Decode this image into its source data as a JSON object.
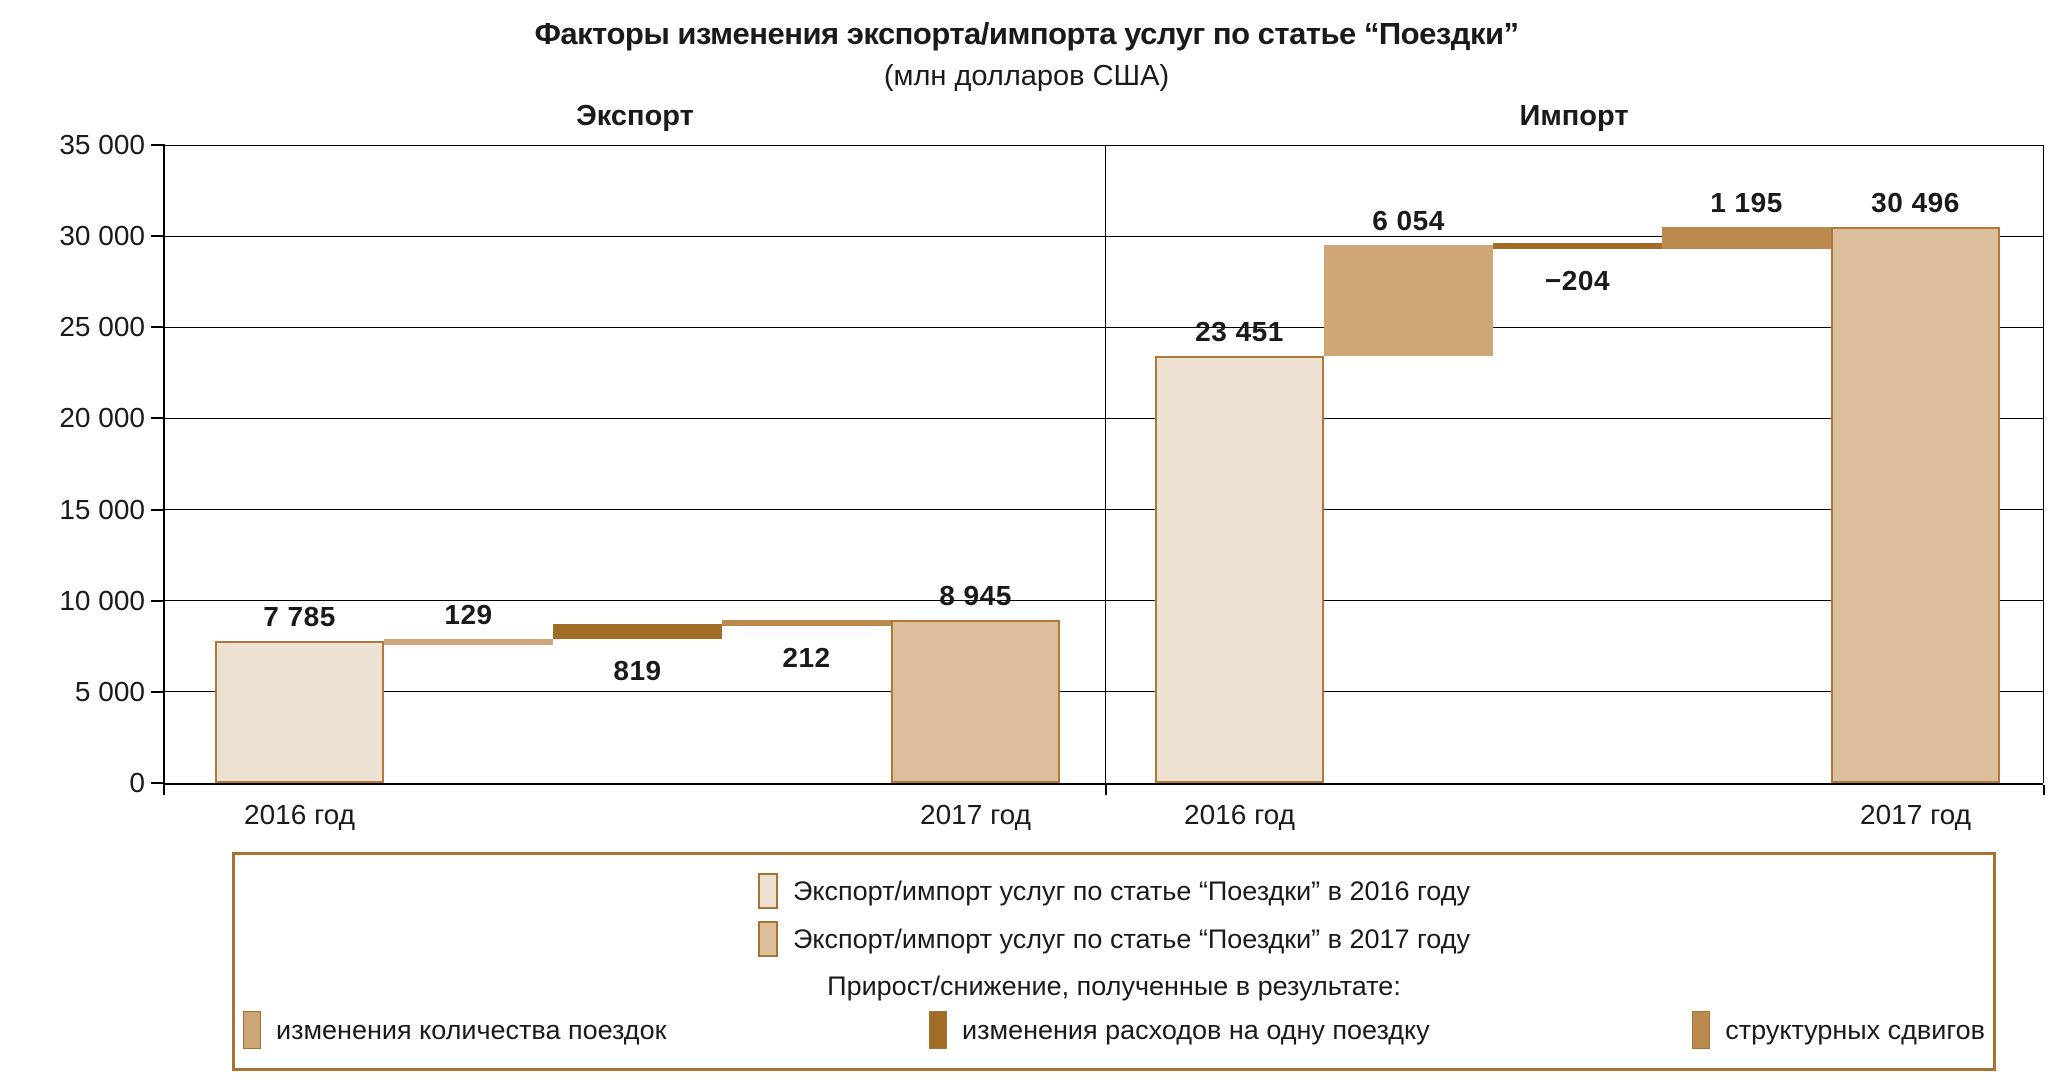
{
  "colors": {
    "year2016": "#EDE1D1",
    "year2017": "#DBBF9C",
    "trips": "#CFA677",
    "spend": "#A16C26",
    "structural": "#BB8A4E",
    "bar_border": "#B0793A",
    "legend_border": "#A9722F",
    "axis": "#000000",
    "text": "#1A1A1A"
  },
  "chart_data": {
    "type": "bar",
    "variant": "waterfall",
    "title": "Факторы изменения экспорта/импорта услуг по статье “Поездки”",
    "subtitle": "(млн долларов США)",
    "unit": "млн долларов США",
    "ylim": [
      0,
      35000
    ],
    "ytick_step": 5000,
    "ytick_labels": [
      "0",
      "5 000",
      "10 000",
      "15 000",
      "20 000",
      "25 000",
      "30 000",
      "35 000"
    ],
    "grid": "horizontal",
    "panels": [
      {
        "title": "Экспорт",
        "bars": [
          {
            "kind": "total",
            "name": "export-2016",
            "label": "7 785",
            "value": 7785,
            "from": 0,
            "to": 7785,
            "series": "year2016",
            "label_pos": "above",
            "x_label": "2016 год"
          },
          {
            "kind": "change",
            "name": "export-trips",
            "label": "129",
            "value": 129,
            "from": 7785,
            "to": 7914,
            "series": "trips",
            "label_pos": "above"
          },
          {
            "kind": "change",
            "name": "export-spend",
            "label": "819",
            "value": 819,
            "from": 7914,
            "to": 8733,
            "series": "spend",
            "label_pos": "below"
          },
          {
            "kind": "change",
            "name": "export-structural",
            "label": "212",
            "value": 212,
            "from": 8733,
            "to": 8945,
            "series": "structural",
            "label_pos": "below"
          },
          {
            "kind": "total",
            "name": "export-2017",
            "label": "8 945",
            "value": 8945,
            "from": 0,
            "to": 8945,
            "series": "year2017",
            "label_pos": "above",
            "x_label": "2017 год"
          }
        ]
      },
      {
        "title": "Импорт",
        "bars": [
          {
            "kind": "total",
            "name": "import-2016",
            "label": "23 451",
            "value": 23451,
            "from": 0,
            "to": 23451,
            "series": "year2016",
            "label_pos": "above",
            "x_label": "2016 год"
          },
          {
            "kind": "change",
            "name": "import-trips",
            "label": "6 054",
            "value": 6054,
            "from": 23451,
            "to": 29505,
            "series": "trips",
            "label_pos": "above"
          },
          {
            "kind": "change",
            "name": "import-spend",
            "label": "−204",
            "value": -204,
            "from": 29505,
            "to": 29301,
            "series": "spend",
            "label_pos": "below"
          },
          {
            "kind": "change",
            "name": "import-structural",
            "label": "1 195",
            "value": 1195,
            "from": 29301,
            "to": 30496,
            "series": "structural",
            "label_pos": "above"
          },
          {
            "kind": "total",
            "name": "import-2017",
            "label": "30 496",
            "value": 30496,
            "from": 0,
            "to": 30496,
            "series": "year2017",
            "label_pos": "above",
            "x_label": "2017 год"
          }
        ]
      }
    ]
  },
  "legend": {
    "items": [
      {
        "label": "Экспорт/импорт услуг по статье “Поездки” в 2016 году",
        "series": "year2016"
      },
      {
        "label": "Экспорт/импорт услуг по статье “Поездки” в 2017 году",
        "series": "year2017"
      }
    ],
    "group_title": "Прирост/снижение, полученные в результате:",
    "group_items": [
      {
        "label": "изменения количества поездок",
        "series": "trips"
      },
      {
        "label": "изменения расходов на одну поездку",
        "series": "spend"
      },
      {
        "label": "структурных сдвигов",
        "series": "structural"
      }
    ]
  }
}
